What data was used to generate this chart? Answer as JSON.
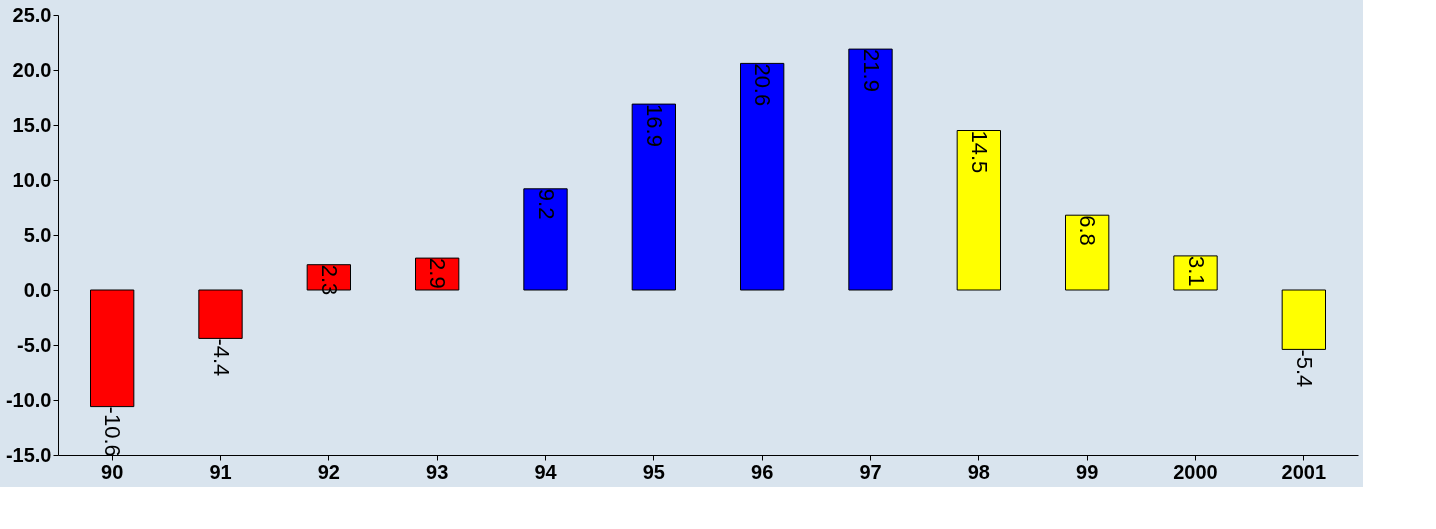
{
  "chart_data": {
    "type": "bar",
    "categories": [
      "90",
      "91",
      "92",
      "93",
      "94",
      "95",
      "96",
      "97",
      "98",
      "99",
      "2000",
      "2001"
    ],
    "values": [
      -10.6,
      -4.4,
      2.3,
      2.9,
      9.2,
      16.9,
      20.6,
      21.9,
      14.5,
      6.8,
      3.1,
      -5.4
    ],
    "colors": [
      "#ff0000",
      "#ff0000",
      "#ff0000",
      "#ff0000",
      "#0000ff",
      "#0000ff",
      "#0000ff",
      "#0000ff",
      "#ffff00",
      "#ffff00",
      "#ffff00",
      "#ffff00"
    ],
    "ylim": [
      -15,
      25
    ],
    "yticks": [
      {
        "value": -15,
        "label": "-15.0"
      },
      {
        "value": -10,
        "label": "-10.0"
      },
      {
        "value": -5,
        "label": "-5.0"
      },
      {
        "value": 0,
        "label": "0.0"
      },
      {
        "value": 5,
        "label": "5.0"
      },
      {
        "value": 10,
        "label": "10.0"
      },
      {
        "value": 15,
        "label": "15.0"
      },
      {
        "value": 20,
        "label": "20.0"
      },
      {
        "value": 25,
        "label": "25.0"
      }
    ],
    "data_labels": true
  }
}
